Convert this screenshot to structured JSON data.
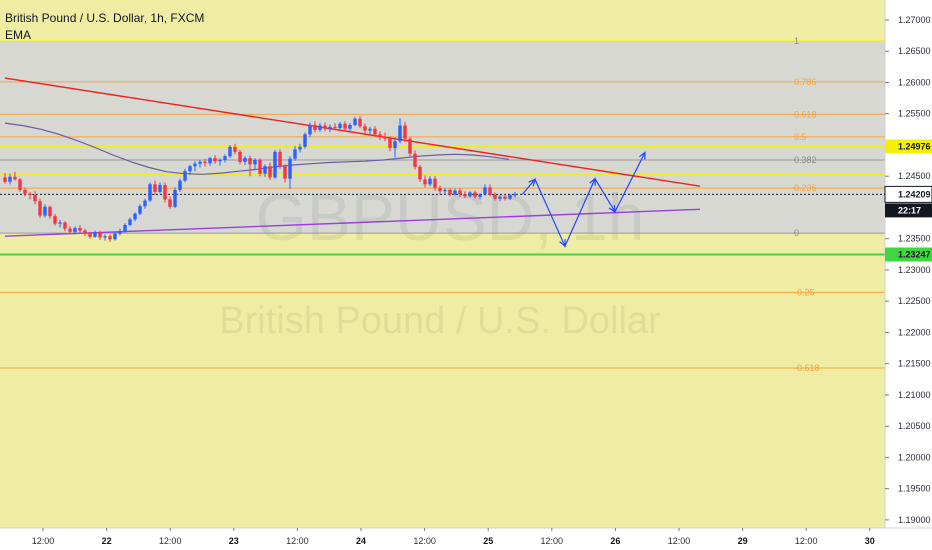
{
  "header": {
    "symbol_title": "British Pound / U.S. Dollar, 1h, FXCM",
    "indicator": "EMA"
  },
  "watermark": {
    "ticker": "GBPUSD, 1h",
    "name": "British Pound / U.S. Dollar"
  },
  "price_axis": {
    "labels": [
      "1.27000",
      "1.26500",
      "1.26000",
      "1.25500",
      "1.24500",
      "1.24000",
      "1.23500",
      "1.23000",
      "1.22500",
      "1.22000",
      "1.21500",
      "1.21000",
      "1.20500",
      "1.20000",
      "1.19500",
      "1.19000"
    ],
    "current_price": "1.24209",
    "countdown": "22:17",
    "fib_high_badge": "1.24976",
    "support_badge": "1.23247"
  },
  "time_axis": {
    "labels": [
      {
        "text": "12:00",
        "bold": false
      },
      {
        "text": "22",
        "bold": true
      },
      {
        "text": "12:00",
        "bold": false
      },
      {
        "text": "23",
        "bold": true
      },
      {
        "text": "12:00",
        "bold": false
      },
      {
        "text": "24",
        "bold": true
      },
      {
        "text": "12:00",
        "bold": false
      },
      {
        "text": "25",
        "bold": true
      },
      {
        "text": "12:00",
        "bold": false
      },
      {
        "text": "26",
        "bold": true
      },
      {
        "text": "12:00",
        "bold": false
      },
      {
        "text": "29",
        "bold": true
      },
      {
        "text": "12:00",
        "bold": false
      },
      {
        "text": "30",
        "bold": true
      }
    ]
  },
  "fib_levels": [
    {
      "label": "1",
      "value": 1.2666
    },
    {
      "label": "0.786",
      "value": 1.2601
    },
    {
      "label": "0.618",
      "value": 1.2549
    },
    {
      "label": "0.5",
      "value": 1.2513
    },
    {
      "label": "0.382",
      "value": 1.2476
    },
    {
      "label": "0.236",
      "value": 1.2431
    },
    {
      "label": "0",
      "value": 1.2359
    },
    {
      "label": "-0.25",
      "value": 1.2264
    },
    {
      "label": "-0.618",
      "value": 1.2143
    }
  ],
  "colors": {
    "bull": "#2962ff",
    "bear": "#f23645",
    "ema": "#6a5aa6",
    "trend_down": "#f0201c",
    "trend_up": "#9b3de0",
    "projection": "#2244ff",
    "fib": "#f4a440",
    "zone_top": "#d7d8d2",
    "zone_bottom": "#efeda3",
    "support": "#3fd63f",
    "yellow": "#f5f000"
  },
  "chart_data": {
    "type": "candlestick",
    "title": "British Pound / U.S. Dollar, 1h, FXCM",
    "ylim": [
      1.1887,
      1.2732
    ],
    "candles": [
      [
        1.2448,
        1.2455,
        1.2438,
        1.2441
      ],
      [
        1.2441,
        1.2454,
        1.2437,
        1.2449
      ],
      [
        1.2449,
        1.2457,
        1.2443,
        1.2445
      ],
      [
        1.2445,
        1.2447,
        1.2425,
        1.2428
      ],
      [
        1.2428,
        1.2432,
        1.2418,
        1.2422
      ],
      [
        1.2422,
        1.2425,
        1.2413,
        1.242
      ],
      [
        1.242,
        1.2426,
        1.2405,
        1.241
      ],
      [
        1.241,
        1.2414,
        1.2383,
        1.2387
      ],
      [
        1.2387,
        1.2405,
        1.2384,
        1.2401
      ],
      [
        1.2401,
        1.2403,
        1.2382,
        1.2386
      ],
      [
        1.2386,
        1.239,
        1.2371,
        1.2374
      ],
      [
        1.2374,
        1.238,
        1.2368,
        1.2376
      ],
      [
        1.2376,
        1.2378,
        1.2362,
        1.2366
      ],
      [
        1.2366,
        1.237,
        1.2358,
        1.2361
      ],
      [
        1.2361,
        1.237,
        1.2357,
        1.2367
      ],
      [
        1.2367,
        1.2372,
        1.2359,
        1.2363
      ],
      [
        1.2363,
        1.2366,
        1.2354,
        1.2358
      ],
      [
        1.2358,
        1.2361,
        1.235,
        1.2353
      ],
      [
        1.2353,
        1.2363,
        1.2351,
        1.236
      ],
      [
        1.236,
        1.2363,
        1.2348,
        1.2352
      ],
      [
        1.2352,
        1.2357,
        1.2347,
        1.2354
      ],
      [
        1.2354,
        1.2357,
        1.2345,
        1.2349
      ],
      [
        1.2349,
        1.2361,
        1.2347,
        1.2358
      ],
      [
        1.2358,
        1.2366,
        1.2355,
        1.2362
      ],
      [
        1.2362,
        1.2375,
        1.236,
        1.2372
      ],
      [
        1.2372,
        1.2384,
        1.237,
        1.2381
      ],
      [
        1.2381,
        1.2392,
        1.2378,
        1.239
      ],
      [
        1.239,
        1.2405,
        1.2388,
        1.2402
      ],
      [
        1.2402,
        1.2414,
        1.2398,
        1.2411
      ],
      [
        1.2411,
        1.244,
        1.2409,
        1.2437
      ],
      [
        1.2437,
        1.2443,
        1.242,
        1.2425
      ],
      [
        1.2425,
        1.244,
        1.2423,
        1.2436
      ],
      [
        1.2436,
        1.244,
        1.2408,
        1.2413
      ],
      [
        1.2413,
        1.2418,
        1.2398,
        1.2401
      ],
      [
        1.2401,
        1.2432,
        1.2399,
        1.2428
      ],
      [
        1.2428,
        1.2446,
        1.2425,
        1.2443
      ],
      [
        1.2443,
        1.2462,
        1.244,
        1.2458
      ],
      [
        1.2458,
        1.2468,
        1.2452,
        1.2466
      ],
      [
        1.2466,
        1.2474,
        1.2458,
        1.247
      ],
      [
        1.247,
        1.2476,
        1.2464,
        1.2473
      ],
      [
        1.2473,
        1.2478,
        1.2466,
        1.2471
      ],
      [
        1.2471,
        1.2481,
        1.2467,
        1.2479
      ],
      [
        1.2479,
        1.2484,
        1.247,
        1.2474
      ],
      [
        1.2474,
        1.2479,
        1.2467,
        1.2476
      ],
      [
        1.2476,
        1.2485,
        1.2472,
        1.2482
      ],
      [
        1.2482,
        1.25,
        1.2479,
        1.2497
      ],
      [
        1.2497,
        1.2502,
        1.2485,
        1.2489
      ],
      [
        1.2489,
        1.2492,
        1.2469,
        1.2473
      ],
      [
        1.2473,
        1.2482,
        1.2468,
        1.2479
      ],
      [
        1.2479,
        1.2483,
        1.245,
        1.2469
      ],
      [
        1.2469,
        1.2479,
        1.2461,
        1.2476
      ],
      [
        1.2476,
        1.2479,
        1.245,
        1.2454
      ],
      [
        1.2454,
        1.2469,
        1.2449,
        1.2466
      ],
      [
        1.2466,
        1.2472,
        1.2444,
        1.2448
      ],
      [
        1.2448,
        1.2492,
        1.2446,
        1.2489
      ],
      [
        1.2489,
        1.2493,
        1.2462,
        1.2466
      ],
      [
        1.2466,
        1.2469,
        1.244,
        1.2446
      ],
      [
        1.2446,
        1.2482,
        1.243,
        1.2478
      ],
      [
        1.2478,
        1.2498,
        1.2475,
        1.2493
      ],
      [
        1.2493,
        1.2502,
        1.2488,
        1.2497
      ],
      [
        1.2497,
        1.252,
        1.2494,
        1.2517
      ],
      [
        1.2517,
        1.2536,
        1.2513,
        1.2532
      ],
      [
        1.2532,
        1.2538,
        1.252,
        1.2524
      ],
      [
        1.2524,
        1.2535,
        1.2521,
        1.2531
      ],
      [
        1.2531,
        1.2536,
        1.2522,
        1.2526
      ],
      [
        1.2526,
        1.2533,
        1.2521,
        1.2529
      ],
      [
        1.2529,
        1.2535,
        1.2524,
        1.2527
      ],
      [
        1.2527,
        1.2537,
        1.2525,
        1.2534
      ],
      [
        1.2534,
        1.2538,
        1.2523,
        1.2526
      ],
      [
        1.2526,
        1.2535,
        1.2522,
        1.2532
      ],
      [
        1.2532,
        1.2545,
        1.253,
        1.2542
      ],
      [
        1.2542,
        1.2546,
        1.2527,
        1.253
      ],
      [
        1.253,
        1.2534,
        1.2519,
        1.2523
      ],
      [
        1.2523,
        1.2529,
        1.2516,
        1.2526
      ],
      [
        1.2526,
        1.253,
        1.2513,
        1.2517
      ],
      [
        1.2517,
        1.2522,
        1.2508,
        1.2513
      ],
      [
        1.2513,
        1.252,
        1.2506,
        1.251
      ],
      [
        1.251,
        1.2514,
        1.249,
        1.2495
      ],
      [
        1.2495,
        1.2512,
        1.248,
        1.2506
      ],
      [
        1.2506,
        1.2543,
        1.2503,
        1.2531
      ],
      [
        1.2531,
        1.2537,
        1.2505,
        1.251
      ],
      [
        1.251,
        1.2512,
        1.2482,
        1.2486
      ],
      [
        1.2486,
        1.2491,
        1.2461,
        1.2465
      ],
      [
        1.2465,
        1.2468,
        1.2441,
        1.2445
      ],
      [
        1.2445,
        1.2451,
        1.2432,
        1.2437
      ],
      [
        1.2437,
        1.245,
        1.2434,
        1.2446
      ],
      [
        1.2446,
        1.245,
        1.2427,
        1.2431
      ],
      [
        1.2431,
        1.2435,
        1.2421,
        1.2426
      ],
      [
        1.2426,
        1.2431,
        1.242,
        1.2428
      ],
      [
        1.2428,
        1.2431,
        1.2418,
        1.2421
      ],
      [
        1.2421,
        1.243,
        1.2419,
        1.2427
      ],
      [
        1.2427,
        1.2431,
        1.2417,
        1.2421
      ],
      [
        1.2421,
        1.2426,
        1.2415,
        1.2418
      ],
      [
        1.2418,
        1.2426,
        1.2416,
        1.2424
      ],
      [
        1.2424,
        1.2427,
        1.2414,
        1.2417
      ],
      [
        1.2417,
        1.2423,
        1.2413,
        1.2421
      ],
      [
        1.2421,
        1.2437,
        1.2419,
        1.2432
      ],
      [
        1.2432,
        1.2437,
        1.2418,
        1.242
      ],
      [
        1.242,
        1.2424,
        1.2411,
        1.2414
      ],
      [
        1.2414,
        1.242,
        1.241,
        1.2417
      ],
      [
        1.2417,
        1.2422,
        1.2411,
        1.2414
      ],
      [
        1.2414,
        1.2422,
        1.2412,
        1.242
      ],
      [
        1.242,
        1.2425,
        1.2416,
        1.2421
      ]
    ],
    "ema": [
      1.2535,
      1.2531,
      1.2525,
      1.2517,
      1.2507,
      1.2496,
      1.2484,
      1.2473,
      1.2464,
      1.2457,
      1.2454,
      1.2453,
      1.2455,
      1.2458,
      1.2461,
      1.2465,
      1.2468,
      1.247,
      1.2472,
      1.2473,
      1.2474,
      1.2476,
      1.2479,
      1.2482,
      1.2484,
      1.2485,
      1.2484,
      1.2481,
      1.2477
    ],
    "trendline_down": {
      "from": [
        0,
        1.2607
      ],
      "to": [
        139,
        1.2434
      ]
    },
    "trendline_up": {
      "from": [
        0,
        1.2354
      ],
      "to": [
        139,
        1.2397
      ]
    },
    "projection_path": [
      [
        103.5,
        1.2421
      ],
      [
        106,
        1.2445
      ],
      [
        112,
        1.2338
      ],
      [
        118,
        1.2446
      ],
      [
        122,
        1.2393
      ],
      [
        128,
        1.2488
      ]
    ]
  }
}
